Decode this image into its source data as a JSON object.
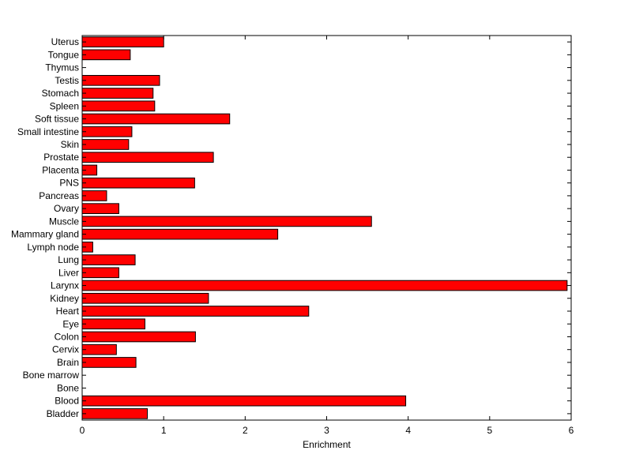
{
  "chart_data": {
    "type": "bar",
    "orientation": "horizontal",
    "title": "",
    "xlabel": "Enrichment",
    "ylabel": "",
    "xlim": [
      0,
      6
    ],
    "x_ticks": [
      "0",
      "1",
      "2",
      "3",
      "4",
      "5",
      "6"
    ],
    "grid": false,
    "legend": "none",
    "bar_color": "#ff0000",
    "bar_edge_color": "#000000",
    "categories": [
      "Uterus",
      "Tongue",
      "Thymus",
      "Testis",
      "Stomach",
      "Spleen",
      "Soft tissue",
      "Small intestine",
      "Skin",
      "Prostate",
      "Placenta",
      "PNS",
      "Pancreas",
      "Ovary",
      "Muscle",
      "Mammary gland",
      "Lymph node",
      "Lung",
      "Liver",
      "Larynx",
      "Kidney",
      "Heart",
      "Eye",
      "Colon",
      "Cervix",
      "Brain",
      "Bone marrow",
      "Bone",
      "Blood",
      "Bladder"
    ],
    "values": [
      1.0,
      0.59,
      0.0,
      0.95,
      0.87,
      0.89,
      1.81,
      0.61,
      0.57,
      1.61,
      0.18,
      1.38,
      0.3,
      0.45,
      3.55,
      2.4,
      0.13,
      0.65,
      0.45,
      5.95,
      1.55,
      2.78,
      0.77,
      1.39,
      0.42,
      0.66,
      0.0,
      0.0,
      3.97,
      0.8
    ]
  }
}
